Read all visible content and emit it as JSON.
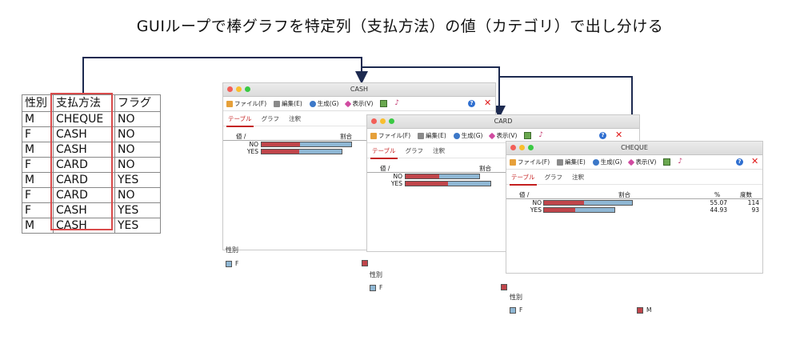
{
  "title": "GUIループで棒グラフを特定列（支払方法）の値（カテゴリ）で出し分ける",
  "source_table": {
    "headers": [
      "性別",
      "支払方法",
      "フラグ"
    ],
    "rows": [
      [
        "M",
        "CHEQUE",
        "NO"
      ],
      [
        "F",
        "CASH",
        "NO"
      ],
      [
        "M",
        "CASH",
        "NO"
      ],
      [
        "F",
        "CARD",
        "NO"
      ],
      [
        "M",
        "CARD",
        "YES"
      ],
      [
        "F",
        "CARD",
        "NO"
      ],
      [
        "F",
        "CASH",
        "YES"
      ],
      [
        "M",
        "CASH",
        "YES"
      ]
    ]
  },
  "colors": {
    "male": "#c0454b",
    "female": "#8fb7d4",
    "arrow": "#1d2a50",
    "highlight": "#d94a4a"
  },
  "windows": [
    {
      "title": "CASH",
      "menu": [
        "ファイル(F)",
        "編集(E)",
        "生成(G)",
        "表示(V)"
      ],
      "tabs": [
        "テーブル",
        "グラフ",
        "注釈"
      ],
      "col_value": "値 /",
      "col_ratio": "割合",
      "rows": [
        {
          "label": "NO",
          "m": 0.43,
          "f": 0.57
        },
        {
          "label": "YES",
          "m": 0.47,
          "f": 0.53
        }
      ],
      "legend_title": "性別",
      "legend": [
        "F",
        "M"
      ]
    },
    {
      "title": "CARD",
      "menu": [
        "ファイル(F)",
        "編集(E)",
        "生成(G)",
        "表示(V)"
      ],
      "tabs": [
        "テーブル",
        "グラフ",
        "注釈"
      ],
      "col_value": "値 /",
      "col_ratio": "割合",
      "rows": [
        {
          "label": "NO",
          "m": 0.46,
          "f": 0.54
        },
        {
          "label": "YES",
          "m": 0.5,
          "f": 0.5
        }
      ],
      "legend_title": "性別",
      "legend": [
        "F",
        "M"
      ]
    },
    {
      "title": "CHEQUE",
      "menu": [
        "ファイル(F)",
        "編集(E)",
        "生成(G)",
        "表示(V)"
      ],
      "tabs": [
        "テーブル",
        "グラフ",
        "注釈"
      ],
      "col_value": "値 /",
      "col_ratio": "割合",
      "col_pct": "%",
      "col_freq": "度数",
      "rows": [
        {
          "label": "NO",
          "m": 0.45,
          "f": 0.55,
          "pct": "55.07",
          "freq": "114"
        },
        {
          "label": "YES",
          "m": 0.44,
          "f": 0.56,
          "pct": "44.93",
          "freq": "93"
        }
      ],
      "legend_title": "性別",
      "legend": [
        "F",
        "M"
      ]
    }
  ]
}
